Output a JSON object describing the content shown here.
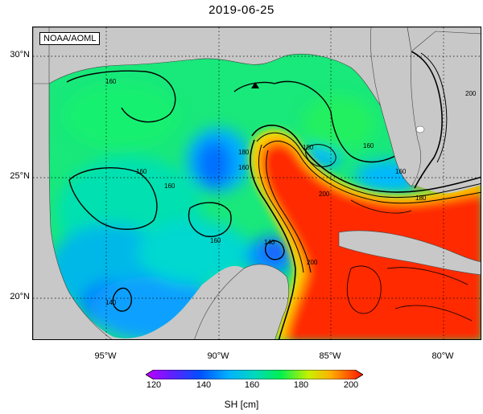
{
  "map": {
    "title": "2019-06-25",
    "source": "NOAA/AOML",
    "lat_labels": [
      "30°N",
      "25°N",
      "20°N"
    ],
    "lon_labels": [
      "95°W",
      "90°W",
      "85°W",
      "80°W"
    ],
    "lat_range": [
      18,
      31
    ],
    "lon_range": [
      -98,
      -78
    ],
    "variable_label": "SH [cm]",
    "colorbar_ticks": [
      "120",
      "140",
      "160",
      "180",
      "200"
    ],
    "colorbar_range": [
      120,
      200
    ],
    "contour_labels": [
      "160",
      "160",
      "160",
      "160",
      "160",
      "160",
      "180",
      "180",
      "180",
      "200",
      "200",
      "200",
      "140",
      "140",
      "160"
    ],
    "colors": {
      "land": "#c8c8c8",
      "low": "#8000ff",
      "mid_low": "#0050ff",
      "mid": "#00c8c8",
      "mid_high": "#00ff40",
      "high_mid": "#ffe600",
      "high": "#ff1400"
    }
  }
}
